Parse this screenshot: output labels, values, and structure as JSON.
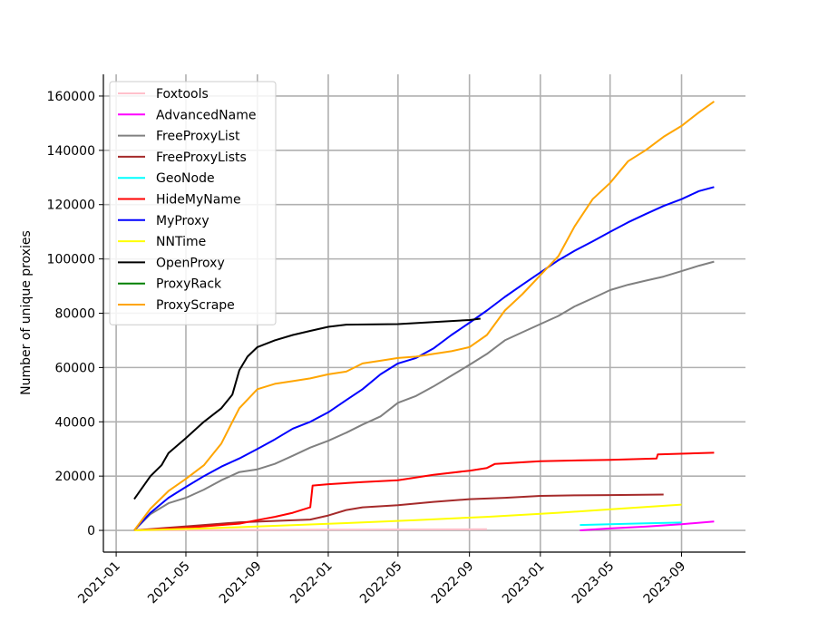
{
  "chart_data": {
    "type": "line",
    "title": "",
    "xlabel": "",
    "ylabel": "Number of unique proxies",
    "grid": true,
    "legend_position": "top-left",
    "x_ticks": [
      "2021-01",
      "2021-05",
      "2021-09",
      "2022-01",
      "2022-05",
      "2022-09",
      "2023-01",
      "2023-05",
      "2023-09"
    ],
    "y_ticks": [
      0,
      20000,
      40000,
      60000,
      80000,
      100000,
      120000,
      140000,
      160000
    ],
    "xlim": [
      "2020-12-10",
      "2023-12-20"
    ],
    "ylim": [
      -8000,
      168000
    ],
    "series": [
      {
        "name": "Foxtools",
        "color": "#ffc0cb",
        "points": [
          [
            "2021-02-01",
            0
          ],
          [
            "2021-06-01",
            100
          ],
          [
            "2022-01-01",
            250
          ],
          [
            "2022-06-01",
            350
          ],
          [
            "2022-10-01",
            400
          ]
        ]
      },
      {
        "name": "AdvancedName",
        "color": "#ff00ff",
        "points": [
          [
            "2023-03-10",
            0
          ],
          [
            "2023-05-01",
            700
          ],
          [
            "2023-07-01",
            1400
          ],
          [
            "2023-09-01",
            2300
          ],
          [
            "2023-10-27",
            3300
          ]
        ]
      },
      {
        "name": "FreeProxyList",
        "color": "#808080",
        "points": [
          [
            "2021-02-01",
            0
          ],
          [
            "2021-03-01",
            6000
          ],
          [
            "2021-04-01",
            10000
          ],
          [
            "2021-05-01",
            12000
          ],
          [
            "2021-06-01",
            15000
          ],
          [
            "2021-07-01",
            18500
          ],
          [
            "2021-08-01",
            21500
          ],
          [
            "2021-09-01",
            22500
          ],
          [
            "2021-10-01",
            24500
          ],
          [
            "2021-11-01",
            27500
          ],
          [
            "2021-12-01",
            30500
          ],
          [
            "2022-01-01",
            33000
          ],
          [
            "2022-02-01",
            36000
          ],
          [
            "2022-03-01",
            39000
          ],
          [
            "2022-04-01",
            42000
          ],
          [
            "2022-05-01",
            47000
          ],
          [
            "2022-06-01",
            49500
          ],
          [
            "2022-07-01",
            53000
          ],
          [
            "2022-08-01",
            57000
          ],
          [
            "2022-09-01",
            61000
          ],
          [
            "2022-10-01",
            65000
          ],
          [
            "2022-11-01",
            70000
          ],
          [
            "2022-12-01",
            73000
          ],
          [
            "2023-01-01",
            76000
          ],
          [
            "2023-02-01",
            79000
          ],
          [
            "2023-03-01",
            82500
          ],
          [
            "2023-04-01",
            85500
          ],
          [
            "2023-05-01",
            88500
          ],
          [
            "2023-06-01",
            90500
          ],
          [
            "2023-07-01",
            92000
          ],
          [
            "2023-08-01",
            93500
          ],
          [
            "2023-09-01",
            95500
          ],
          [
            "2023-10-01",
            97500
          ],
          [
            "2023-10-27",
            99000
          ]
        ]
      },
      {
        "name": "FreeProxyLists",
        "color": "#a52a2a",
        "points": [
          [
            "2021-02-01",
            0
          ],
          [
            "2021-04-01",
            1000
          ],
          [
            "2021-06-01",
            2000
          ],
          [
            "2021-08-01",
            3000
          ],
          [
            "2021-10-01",
            3500
          ],
          [
            "2021-12-01",
            4000
          ],
          [
            "2022-01-01",
            5500
          ],
          [
            "2022-02-01",
            7500
          ],
          [
            "2022-03-01",
            8500
          ],
          [
            "2022-05-01",
            9300
          ],
          [
            "2022-07-01",
            10500
          ],
          [
            "2022-09-01",
            11500
          ],
          [
            "2022-11-01",
            12000
          ],
          [
            "2023-01-01",
            12700
          ],
          [
            "2023-03-01",
            12900
          ],
          [
            "2023-05-01",
            13000
          ],
          [
            "2023-08-01",
            13200
          ]
        ]
      },
      {
        "name": "GeoNode",
        "color": "#00ffff",
        "points": [
          [
            "2023-03-10",
            2000
          ],
          [
            "2023-05-01",
            2300
          ],
          [
            "2023-07-01",
            2600
          ],
          [
            "2023-09-01",
            2900
          ]
        ]
      },
      {
        "name": "HideMyName",
        "color": "#ff0000",
        "points": [
          [
            "2021-02-01",
            0
          ],
          [
            "2021-05-01",
            1000
          ],
          [
            "2021-08-01",
            2500
          ],
          [
            "2021-09-01",
            3800
          ],
          [
            "2021-10-01",
            5000
          ],
          [
            "2021-11-01",
            6500
          ],
          [
            "2021-12-01",
            8500
          ],
          [
            "2021-12-05",
            16500
          ],
          [
            "2022-01-01",
            17000
          ],
          [
            "2022-03-01",
            17800
          ],
          [
            "2022-05-01",
            18500
          ],
          [
            "2022-07-01",
            20500
          ],
          [
            "2022-09-01",
            22000
          ],
          [
            "2022-10-01",
            23000
          ],
          [
            "2022-10-15",
            24500
          ],
          [
            "2023-01-01",
            25500
          ],
          [
            "2023-05-01",
            26000
          ],
          [
            "2023-07-20",
            26500
          ],
          [
            "2023-07-22",
            28000
          ],
          [
            "2023-10-27",
            28600
          ]
        ]
      },
      {
        "name": "MyProxy",
        "color": "#0000ff",
        "points": [
          [
            "2021-02-01",
            0
          ],
          [
            "2021-03-01",
            6500
          ],
          [
            "2021-04-01",
            12000
          ],
          [
            "2021-05-01",
            16000
          ],
          [
            "2021-06-01",
            20000
          ],
          [
            "2021-07-01",
            23500
          ],
          [
            "2021-08-01",
            26500
          ],
          [
            "2021-09-01",
            30000
          ],
          [
            "2021-10-01",
            33500
          ],
          [
            "2021-11-01",
            37500
          ],
          [
            "2021-12-01",
            40000
          ],
          [
            "2022-01-01",
            43500
          ],
          [
            "2022-02-01",
            48000
          ],
          [
            "2022-03-01",
            52000
          ],
          [
            "2022-04-01",
            57500
          ],
          [
            "2022-05-01",
            61500
          ],
          [
            "2022-06-01",
            63500
          ],
          [
            "2022-07-01",
            67000
          ],
          [
            "2022-08-01",
            72000
          ],
          [
            "2022-09-01",
            76500
          ],
          [
            "2022-10-01",
            81000
          ],
          [
            "2022-11-01",
            86000
          ],
          [
            "2022-12-01",
            90500
          ],
          [
            "2023-01-01",
            95000
          ],
          [
            "2023-02-01",
            99500
          ],
          [
            "2023-03-01",
            103000
          ],
          [
            "2023-04-01",
            106500
          ],
          [
            "2023-05-01",
            110000
          ],
          [
            "2023-06-01",
            113500
          ],
          [
            "2023-07-01",
            116500
          ],
          [
            "2023-08-01",
            119500
          ],
          [
            "2023-09-01",
            122000
          ],
          [
            "2023-10-01",
            125000
          ],
          [
            "2023-10-27",
            126500
          ]
        ]
      },
      {
        "name": "NNTime",
        "color": "#ffff00",
        "points": [
          [
            "2021-02-01",
            0
          ],
          [
            "2021-06-01",
            700
          ],
          [
            "2021-10-01",
            1700
          ],
          [
            "2022-02-01",
            2700
          ],
          [
            "2022-06-01",
            3800
          ],
          [
            "2022-10-01",
            5000
          ],
          [
            "2023-02-01",
            6500
          ],
          [
            "2023-06-01",
            8200
          ],
          [
            "2023-09-01",
            9500
          ]
        ]
      },
      {
        "name": "OpenProxy",
        "color": "#000000",
        "points": [
          [
            "2021-02-01",
            11500
          ],
          [
            "2021-03-01",
            20000
          ],
          [
            "2021-03-20",
            24000
          ],
          [
            "2021-04-01",
            28500
          ],
          [
            "2021-05-01",
            34000
          ],
          [
            "2021-06-01",
            40000
          ],
          [
            "2021-07-01",
            45000
          ],
          [
            "2021-07-20",
            50000
          ],
          [
            "2021-08-01",
            59000
          ],
          [
            "2021-08-15",
            64000
          ],
          [
            "2021-09-01",
            67500
          ],
          [
            "2021-10-01",
            70000
          ],
          [
            "2021-11-01",
            72000
          ],
          [
            "2021-12-01",
            73500
          ],
          [
            "2022-01-01",
            75000
          ],
          [
            "2022-02-01",
            75800
          ],
          [
            "2022-05-01",
            76000
          ],
          [
            "2022-09-01",
            77500
          ],
          [
            "2022-09-20",
            78000
          ]
        ]
      },
      {
        "name": "ProxyRack",
        "color": "#008000",
        "points": []
      },
      {
        "name": "ProxyScrape",
        "color": "#ffa500",
        "points": [
          [
            "2021-02-01",
            0
          ],
          [
            "2021-03-01",
            8000
          ],
          [
            "2021-04-01",
            14500
          ],
          [
            "2021-05-01",
            19000
          ],
          [
            "2021-06-01",
            24000
          ],
          [
            "2021-07-01",
            32000
          ],
          [
            "2021-07-20",
            40000
          ],
          [
            "2021-08-01",
            45000
          ],
          [
            "2021-09-01",
            52000
          ],
          [
            "2021-10-01",
            54000
          ],
          [
            "2021-11-01",
            55000
          ],
          [
            "2021-12-01",
            56000
          ],
          [
            "2022-01-01",
            57500
          ],
          [
            "2022-02-01",
            58500
          ],
          [
            "2022-03-01",
            61500
          ],
          [
            "2022-04-01",
            62500
          ],
          [
            "2022-05-01",
            63500
          ],
          [
            "2022-06-01",
            64000
          ],
          [
            "2022-07-01",
            65000
          ],
          [
            "2022-08-01",
            66000
          ],
          [
            "2022-09-01",
            67500
          ],
          [
            "2022-10-01",
            72000
          ],
          [
            "2022-11-01",
            81000
          ],
          [
            "2022-12-01",
            87000
          ],
          [
            "2023-01-01",
            94000
          ],
          [
            "2023-02-01",
            101000
          ],
          [
            "2023-03-01",
            112000
          ],
          [
            "2023-04-01",
            122000
          ],
          [
            "2023-05-01",
            128000
          ],
          [
            "2023-06-01",
            136000
          ],
          [
            "2023-07-01",
            140000
          ],
          [
            "2023-08-01",
            145000
          ],
          [
            "2023-09-01",
            149000
          ],
          [
            "2023-10-01",
            154000
          ],
          [
            "2023-10-27",
            158000
          ]
        ]
      }
    ]
  }
}
